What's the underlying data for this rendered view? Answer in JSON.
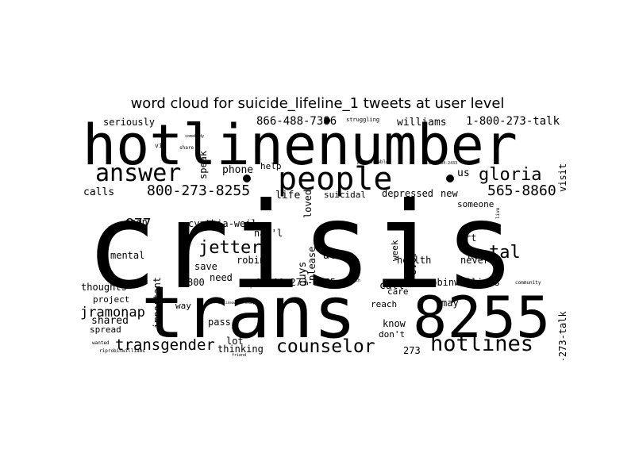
{
  "chart_data": {
    "type": "wordcloud",
    "title": "word cloud for suicide_lifeline_1 tweets at user level",
    "color": "#000000",
    "background": "#ffffff",
    "words": [
      {
        "text": "crisis"
      },
      {
        "text": "hotlinenumber"
      },
      {
        "text": "trans"
      },
      {
        "text": "8255"
      },
      {
        "text": "people"
      },
      {
        "text": "answer"
      },
      {
        "text": "hotlines"
      },
      {
        "text": "counselor"
      },
      {
        "text": "gloria"
      },
      {
        "text": "800-273-8255"
      },
      {
        "text": "565-8860"
      },
      {
        "text": "jetter"
      },
      {
        "text": "transgender"
      },
      {
        "text": "tal"
      },
      {
        "text": "877"
      },
      {
        "text": "jramonap"
      },
      {
        "text": "866-488-7386"
      },
      {
        "text": "1-800-273-talk"
      },
      {
        "text": "williams"
      },
      {
        "text": "seriously"
      },
      {
        "text": "phone"
      },
      {
        "text": "help"
      },
      {
        "text": "life"
      },
      {
        "text": "suicidal"
      },
      {
        "text": "depressed"
      },
      {
        "text": "new"
      },
      {
        "text": "us"
      },
      {
        "text": "calls"
      },
      {
        "text": "cynthia-weil"
      },
      {
        "text": "nat'l"
      },
      {
        "text": "open"
      },
      {
        "text": "mental"
      },
      {
        "text": "important"
      },
      {
        "text": "robin"
      },
      {
        "text": "save"
      },
      {
        "text": "need"
      },
      {
        "text": "800"
      },
      {
        "text": "1-800-273-8255"
      },
      {
        "text": "guys"
      },
      {
        "text": "alone"
      },
      {
        "text": "please"
      },
      {
        "text": "loved"
      },
      {
        "text": "speak"
      },
      {
        "text": "visit"
      },
      {
        "text": "someone"
      },
      {
        "text": "never"
      },
      {
        "text": "rt"
      },
      {
        "text": "hey"
      },
      {
        "text": "week"
      },
      {
        "text": "trevor"
      },
      {
        "text": "health"
      },
      {
        "text": "call"
      },
      {
        "text": "care"
      },
      {
        "text": "robinwilliams"
      },
      {
        "text": "800-273-talk"
      },
      {
        "text": "may"
      },
      {
        "text": "reach"
      },
      {
        "text": "know"
      },
      {
        "text": "don't"
      },
      {
        "text": "273"
      },
      {
        "text": "thoughts"
      },
      {
        "text": "project"
      },
      {
        "text": "shared"
      },
      {
        "text": "spread"
      },
      {
        "text": "way"
      },
      {
        "text": "pass"
      },
      {
        "text": "lot"
      },
      {
        "text": "thinking"
      },
      {
        "text": "struggling"
      },
      {
        "text": "preventable"
      },
      {
        "text": "love"
      },
      {
        "text": "share"
      },
      {
        "text": "via"
      },
      {
        "text": "depression"
      },
      {
        "text": "community"
      },
      {
        "text": "death"
      },
      {
        "text": "suicideawarenessday"
      },
      {
        "text": "riprobinwilliams"
      },
      {
        "text": "friend"
      },
      {
        "text": "wanted"
      },
      {
        "text": "remember"
      },
      {
        "text": "somebody"
      },
      {
        "text": "1-800-784-2433"
      },
      {
        "text": "live"
      }
    ]
  }
}
